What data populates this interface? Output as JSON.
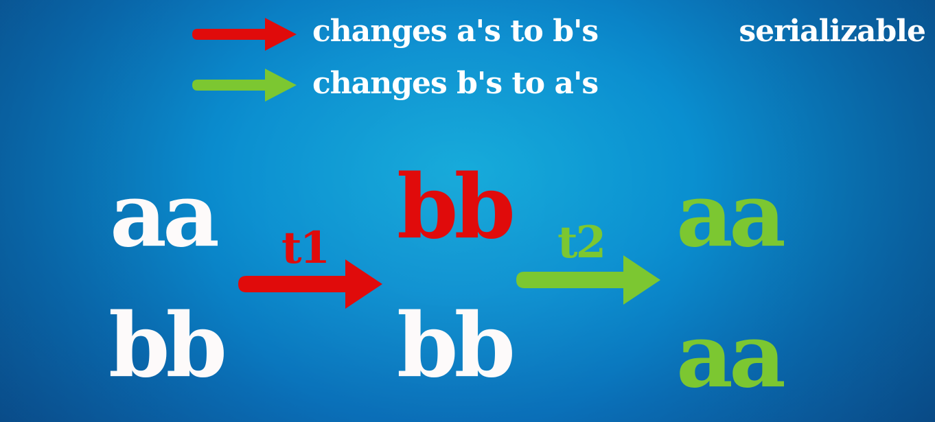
{
  "legend": {
    "red_label": "changes a's to b's",
    "green_label": "changes b's to a's"
  },
  "title": "serializable",
  "states": [
    {
      "top": "aa",
      "bottom": "bb"
    },
    {
      "top": "bb",
      "bottom": "bb"
    },
    {
      "top": "aa",
      "bottom": "aa"
    }
  ],
  "transitions": [
    {
      "label": "t1"
    },
    {
      "label": "t2"
    }
  ],
  "colors": {
    "background": "#0a8fd0",
    "red": "#e00b0b",
    "green": "#7cc731",
    "white": "#fdfafa"
  },
  "icons": {
    "legend_red": "right-arrow-icon",
    "legend_green": "right-arrow-icon",
    "transition_t1": "right-arrow-icon",
    "transition_t2": "right-arrow-icon"
  }
}
